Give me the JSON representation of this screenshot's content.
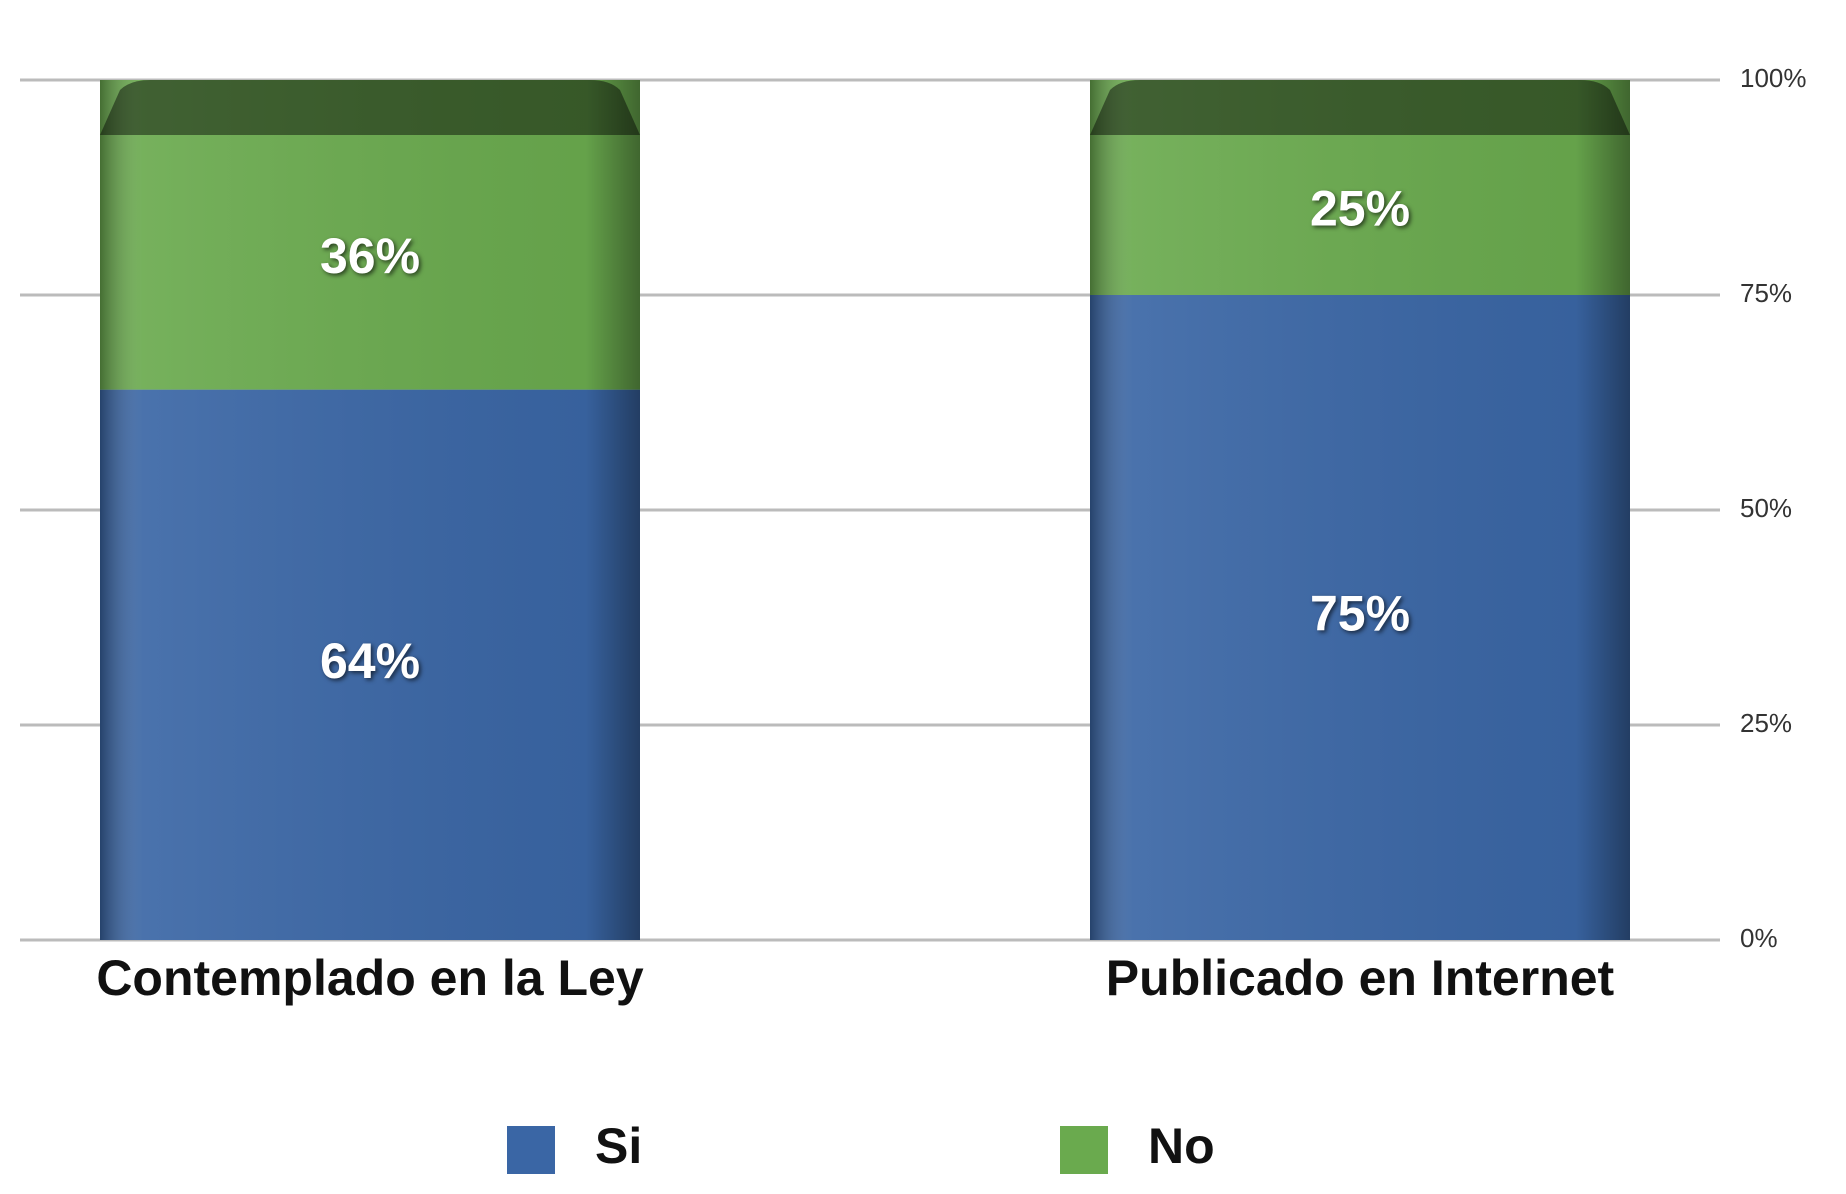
{
  "chart_data": {
    "type": "stacked_bar",
    "categories": [
      "Contemplado en la Ley",
      "Publicado en Internet"
    ],
    "series": [
      {
        "name": "Si",
        "color": "#3a66a5",
        "values": [
          64,
          75
        ],
        "value_labels": [
          "64%",
          "75%"
        ]
      },
      {
        "name": "No",
        "color": "#6aaa4e",
        "values": [
          36,
          25
        ],
        "value_labels": [
          "36%",
          "25%"
        ]
      }
    ],
    "ylim": [
      0,
      100
    ],
    "yticks": [
      {
        "value": 0,
        "label": "0%"
      },
      {
        "value": 25,
        "label": "25%"
      },
      {
        "value": 50,
        "label": "50%"
      },
      {
        "value": 75,
        "label": "75%"
      },
      {
        "value": 100,
        "label": "100%"
      }
    ],
    "grid": true,
    "legend": "bottom"
  }
}
